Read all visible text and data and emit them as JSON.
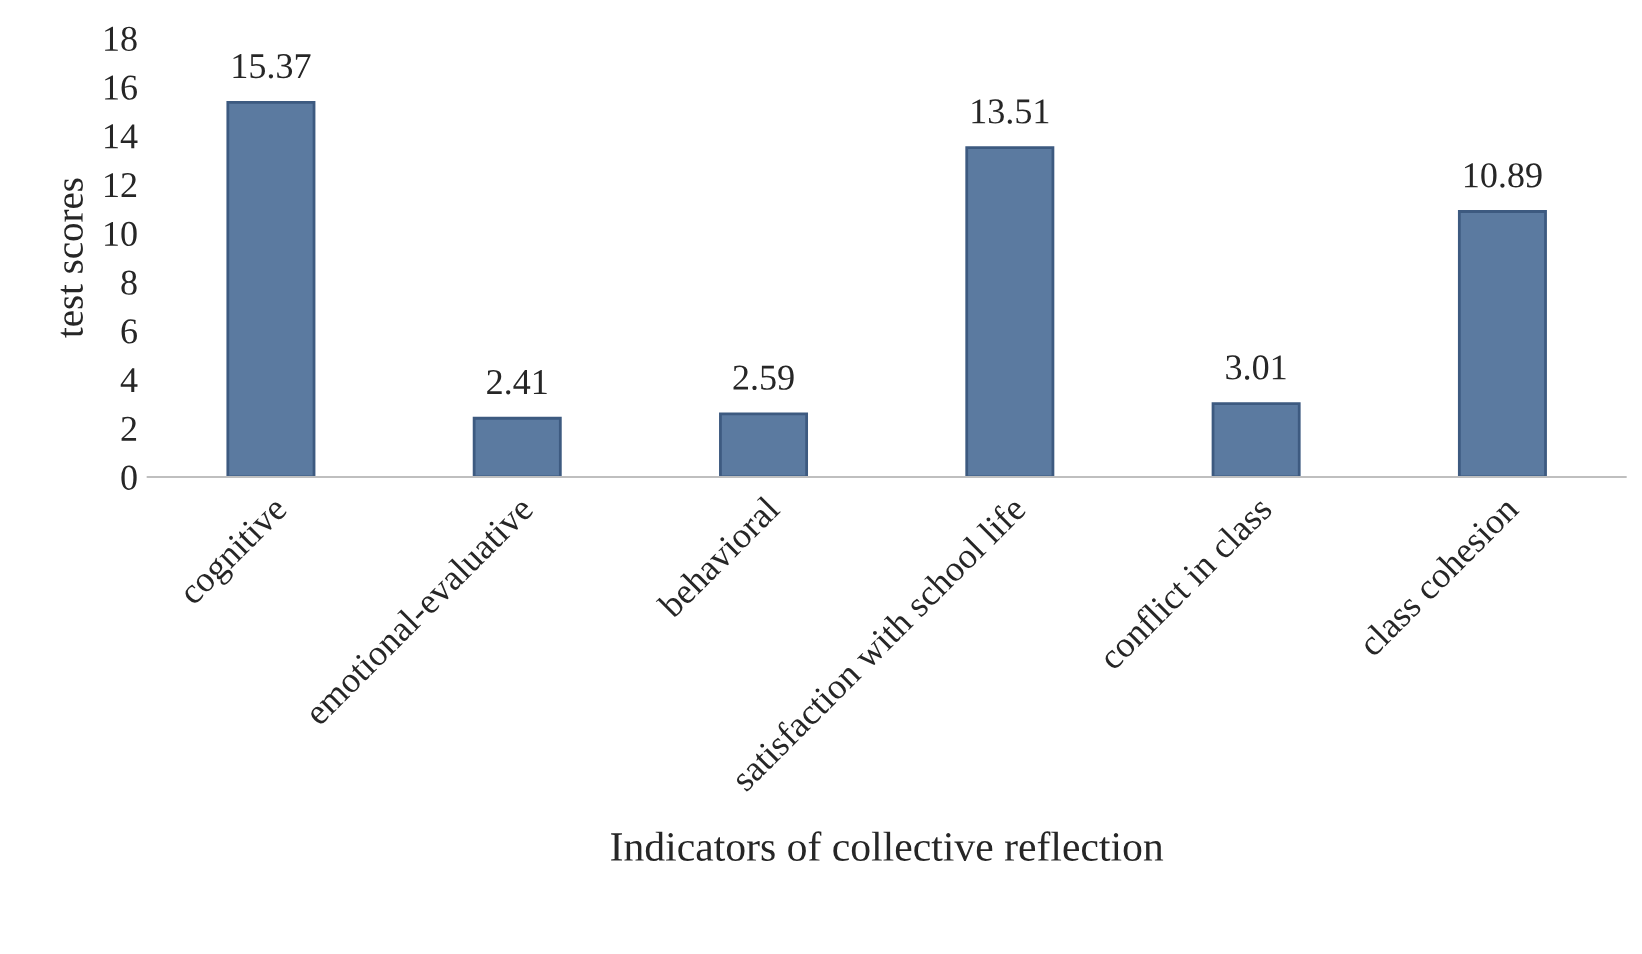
{
  "chart_data": {
    "type": "bar",
    "xlabel": "Indicators of collective reflection",
    "ylabel": "test scores",
    "categories": [
      "cognitive",
      "emotional-evaluative",
      "behavioral",
      "satisfaction with school life",
      "conflict in class",
      "class cohesion"
    ],
    "values": [
      15.37,
      2.41,
      2.59,
      13.51,
      3.01,
      10.89
    ],
    "color": "#5b7aa0",
    "ylim": [
      0,
      18
    ],
    "yticks": [
      0,
      2,
      4,
      6,
      8,
      10,
      12,
      14,
      16,
      18
    ],
    "data_labels": true,
    "grid": false,
    "legend": false
  }
}
